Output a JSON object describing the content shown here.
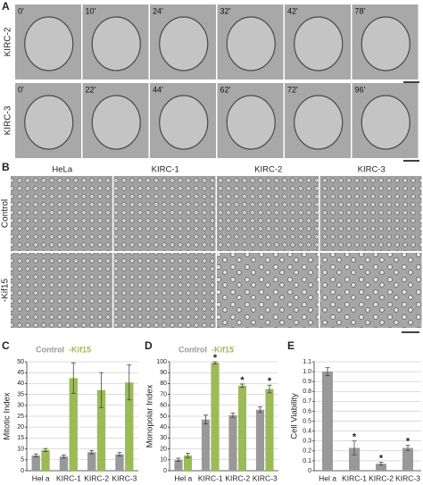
{
  "panel_labels": [
    "A",
    "B"
  ],
  "panel_a": {
    "rows": [
      {
        "label": "KIRC-2",
        "times": [
          "0'",
          "10'",
          "24'",
          "32'",
          "42'",
          "78'"
        ]
      },
      {
        "label": "KIRC-3",
        "times": [
          "0'",
          "22'",
          "44'",
          "62'",
          "72'",
          "96'"
        ]
      }
    ]
  },
  "panel_b": {
    "columns": [
      "HeLa",
      "KIRC-1",
      "KIRC-2",
      "KIRC-3"
    ],
    "rows": [
      "Control",
      "-Kif15"
    ]
  },
  "chart_data": [
    {
      "type": "bar",
      "panel_label": "C",
      "y_label": "Mitotic Index",
      "categories": [
        "Hel a",
        "KIRC-1",
        "KIRC-2",
        "KIRC-3"
      ],
      "series": [
        {
          "name": "Control",
          "color": "#999999",
          "values": [
            7,
            6.5,
            8.5,
            7.5
          ],
          "errors": [
            0.7,
            0.7,
            0.8,
            0.8
          ]
        },
        {
          "name": "-Kif15",
          "color": "#9bbb59",
          "values": [
            9.5,
            42.5,
            37,
            40.5
          ],
          "errors": [
            0.7,
            7,
            8,
            8
          ]
        }
      ],
      "ylim": [
        0,
        50
      ],
      "yticks": [
        0,
        5,
        10,
        15,
        20,
        25,
        30,
        35,
        40,
        45,
        50
      ],
      "grid": true,
      "legend": "top"
    },
    {
      "type": "bar",
      "panel_label": "D",
      "y_label": "Monopolar Index",
      "categories": [
        "Hel a",
        "KIRC-1",
        "KIRC-2",
        "KIRC-3"
      ],
      "series": [
        {
          "name": "Control",
          "color": "#999999",
          "values": [
            10,
            47,
            51,
            56
          ],
          "errors": [
            1.5,
            4,
            2,
            2.5
          ]
        },
        {
          "name": "-Kif15",
          "color": "#9bbb59",
          "values": [
            14,
            99,
            78,
            75
          ],
          "errors": [
            2,
            1,
            1.5,
            3.5
          ],
          "significance_labels": [
            null,
            "*",
            "*",
            "*"
          ]
        }
      ],
      "ylim": [
        0,
        100
      ],
      "yticks": [
        0,
        10,
        20,
        30,
        40,
        50,
        60,
        70,
        80,
        90,
        100
      ],
      "grid": true,
      "legend": "top"
    },
    {
      "type": "bar",
      "panel_label": "E",
      "y_label": "Cell Viability",
      "categories": [
        "Hel a",
        "KIRC-1",
        "KIRC-2",
        "KIRC-3"
      ],
      "series": [
        {
          "color": "#999999",
          "values": [
            1.0,
            0.23,
            0.07,
            0.23
          ],
          "errors": [
            0.04,
            0.07,
            0.015,
            0.025
          ],
          "significance_labels": [
            null,
            "*",
            "*",
            "*"
          ]
        }
      ],
      "ylim": [
        0,
        1.1
      ],
      "yticks": [
        0,
        0.1,
        0.2,
        0.3,
        0.4,
        0.5,
        0.6,
        0.7,
        0.8,
        0.9,
        {
          "value": 1,
          "label": "1.0"
        },
        1.1
      ],
      "grid": true
    }
  ]
}
